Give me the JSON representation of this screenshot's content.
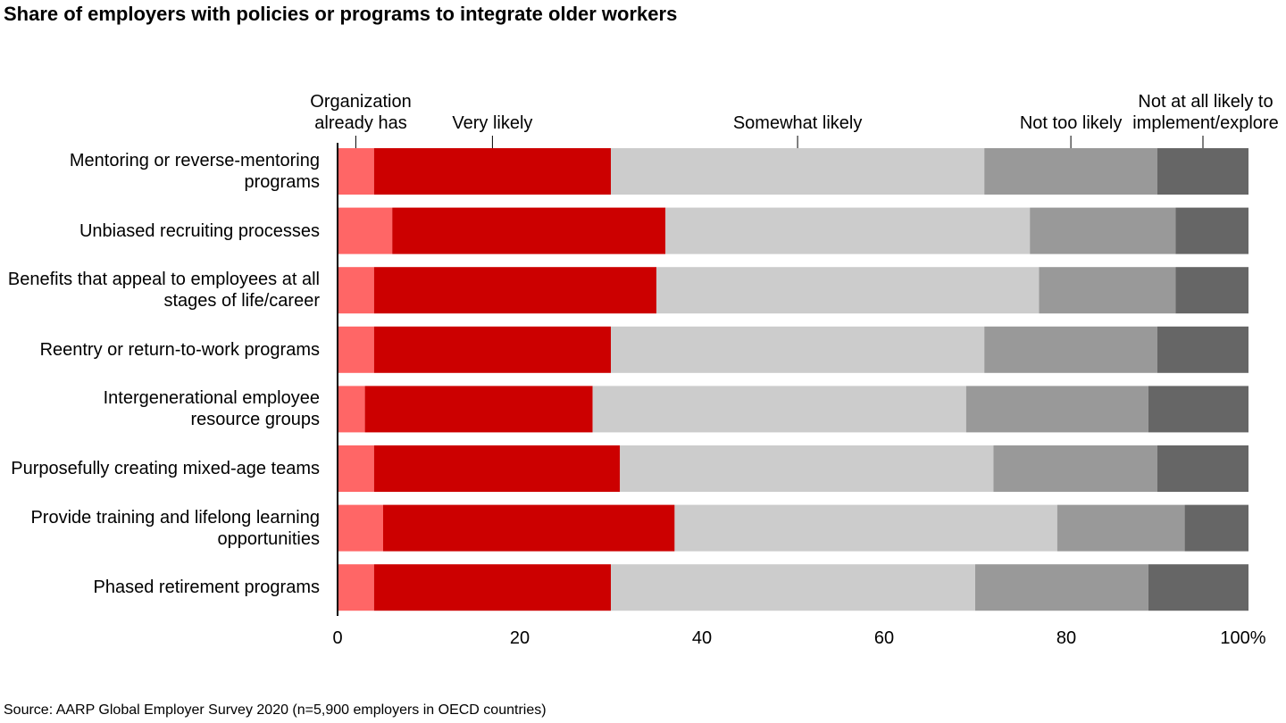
{
  "chart_data": {
    "type": "stacked-bar-horizontal",
    "title": "Share of employers with policies or programs to integrate older workers",
    "source": "Source: AARP Global Employer Survey 2020 (n=5,900 employers in OECD countries)",
    "categories": [
      "Mentoring or reverse-mentoring programs",
      "Unbiased recruiting processes",
      "Benefits that appeal to employees at all stages of life/career",
      "Reentry or return-to-work programs",
      "Intergenerational employee resource groups",
      "Purposefully creating mixed-age teams",
      "Provide training and lifelong learning opportunities",
      "Phased retirement programs"
    ],
    "series": [
      {
        "name": "Organization already has",
        "color": "#ff6666",
        "values": [
          4,
          6,
          4,
          4,
          3,
          4,
          5,
          4
        ]
      },
      {
        "name": "Very likely",
        "color": "#cc0000",
        "values": [
          26,
          30,
          31,
          26,
          25,
          27,
          32,
          26
        ]
      },
      {
        "name": "Somewhat likely",
        "color": "#cccccc",
        "values": [
          41,
          40,
          42,
          41,
          41,
          41,
          42,
          40
        ]
      },
      {
        "name": "Not too likely",
        "color": "#999999",
        "values": [
          19,
          16,
          15,
          19,
          20,
          18,
          14,
          19
        ]
      },
      {
        "name": "Not at all likely to implement/explore",
        "color": "#666666",
        "values": [
          10,
          8,
          8,
          10,
          11,
          10,
          7,
          11
        ]
      }
    ],
    "xlim": [
      0,
      100
    ],
    "xticks": [
      0,
      20,
      40,
      60,
      80,
      {
        "value": 100,
        "label": "100%"
      }
    ]
  }
}
